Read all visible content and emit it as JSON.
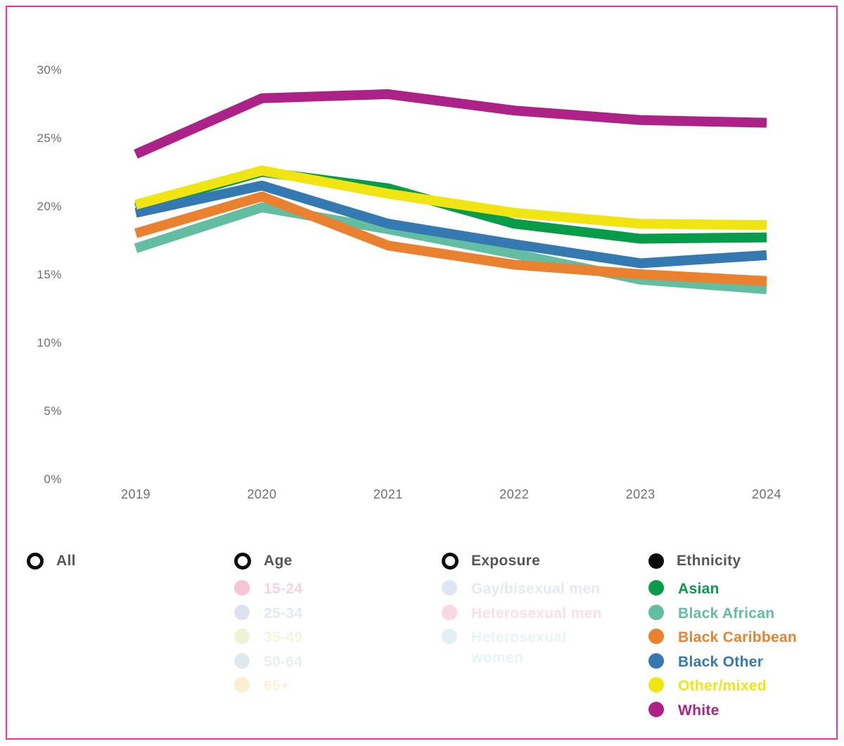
{
  "page": {
    "background": "#ffffff",
    "border_color": "#ff2d96",
    "axis_text_color": "#6e6e6e",
    "legend_header_color": "#57575b"
  },
  "chart_data": {
    "type": "line",
    "title": "",
    "xlabel": "",
    "ylabel": "",
    "categories": [
      "2019",
      "2020",
      "2021",
      "2022",
      "2023",
      "2024"
    ],
    "yticks": [
      "0%",
      "5%",
      "10%",
      "15%",
      "20%",
      "25%",
      "30%"
    ],
    "ylim": [
      0,
      30
    ],
    "unit": "%",
    "grid": false,
    "legend_position": "bottom",
    "series": [
      {
        "name": "Asian",
        "color": "#089b4a",
        "values": [
          19.9,
          22.5,
          21.3,
          18.7,
          17.6,
          17.7
        ]
      },
      {
        "name": "Black African",
        "color": "#62bda1",
        "values": [
          16.9,
          19.9,
          18.3,
          16.5,
          14.6,
          13.9
        ]
      },
      {
        "name": "Black Caribbean",
        "color": "#e9812f",
        "values": [
          18.0,
          20.7,
          17.1,
          15.7,
          15.0,
          14.5
        ]
      },
      {
        "name": "Black Other",
        "color": "#3579b2",
        "values": [
          19.5,
          21.5,
          18.7,
          17.2,
          15.8,
          16.4
        ]
      },
      {
        "name": "Other/mixed",
        "color": "#f0e412",
        "values": [
          20.1,
          22.6,
          20.9,
          19.5,
          18.7,
          18.6
        ]
      },
      {
        "name": "White",
        "color": "#ac2287",
        "values": [
          23.8,
          27.9,
          28.2,
          27.0,
          26.3,
          26.1
        ]
      }
    ]
  },
  "legend": {
    "groups": [
      {
        "label": "All",
        "marker": "ring",
        "selected": false,
        "items": []
      },
      {
        "label": "Age",
        "marker": "ring",
        "selected": false,
        "items": [
          {
            "label": "15-24",
            "dot": "#f7c3d6",
            "text": "#f9d2e0"
          },
          {
            "label": "25-34",
            "dot": "#dde2ee",
            "text": "#e4e8f1"
          },
          {
            "label": "35-49",
            "dot": "#f1f2d5",
            "text": "#f4f5dc"
          },
          {
            "label": "50-64",
            "dot": "#e0eaec",
            "text": "#e7eff0"
          },
          {
            "label": "65+",
            "dot": "#fbeed3",
            "text": "#fcf2da"
          }
        ]
      },
      {
        "label": "Exposure",
        "marker": "ring",
        "selected": false,
        "items": [
          {
            "label": "Gay/bisexual men",
            "dot": "#dfe5f1",
            "text": "#e4e9f3"
          },
          {
            "label": "Heterosexual men",
            "dot": "#f9d8e2",
            "text": "#fbdfe8"
          },
          {
            "label": "Heterosexual\nwomen",
            "dot": "#e2eff3",
            "text": "#e8f3f5"
          }
        ]
      },
      {
        "label": "Ethnicity",
        "marker": "dot",
        "selected": true,
        "items": [
          {
            "label": "Asian",
            "dot": "#089b4a",
            "text": "#089b4a"
          },
          {
            "label": "Black African",
            "dot": "#62bda1",
            "text": "#62bda1"
          },
          {
            "label": "Black Caribbean",
            "dot": "#e9812f",
            "text": "#e9812f"
          },
          {
            "label": "Black Other",
            "dot": "#3579b2",
            "text": "#3579b2"
          },
          {
            "label": "Other/mixed",
            "dot": "#f0e412",
            "text": "#f0e412"
          },
          {
            "label": "White",
            "dot": "#ac2287",
            "text": "#ac2287"
          }
        ]
      }
    ]
  }
}
